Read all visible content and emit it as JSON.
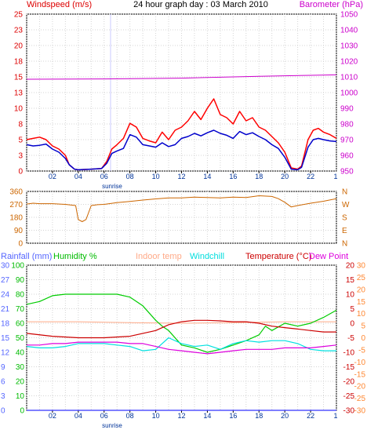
{
  "title": "24 hour graph day : 03 March 2010",
  "chart_data": [
    {
      "type": "line",
      "panel": "wind-barometer",
      "title": "24 hour graph day : 03 March 2010",
      "left_axis_label": "Windspeed (m/s)",
      "right_axis_label": "Barometer (hPa)",
      "left_ticks": [
        "0",
        "3",
        "5",
        "8",
        "10",
        "13",
        "15",
        "18",
        "20",
        "23",
        "25"
      ],
      "left_range": [
        0,
        25
      ],
      "right_ticks": [
        "950",
        "960",
        "970",
        "980",
        "990",
        "1000",
        "1010",
        "1020",
        "1030",
        "1040",
        "1050"
      ],
      "right_range": [
        950,
        1050
      ],
      "x_ticks": [
        "02",
        "04",
        "06",
        "08",
        "10",
        "12",
        "14",
        "16",
        "18",
        "20",
        "22"
      ],
      "x_range": [
        0,
        24
      ],
      "sunrise_label": "sunrise",
      "sunrise_hour": 6.5,
      "grid": true,
      "series": [
        {
          "name": "Windspeed (m/s)",
          "color": "#0000cc",
          "x": [
            0,
            0.5,
            1,
            1.5,
            2,
            2.5,
            3,
            3.3,
            3.7,
            4,
            5,
            5.8,
            6.2,
            6.6,
            7,
            7.5,
            8,
            8.5,
            9,
            9.5,
            10,
            10.5,
            11,
            11.5,
            12,
            12.5,
            13,
            13.5,
            14,
            14.5,
            15,
            15.5,
            16,
            16.5,
            17,
            17.5,
            18,
            18.5,
            19,
            19.5,
            20,
            20.5,
            21,
            21.3,
            21.8,
            22.2,
            22.6,
            23,
            23.5,
            24
          ],
          "y": [
            4.2,
            4.0,
            4.1,
            4.3,
            3.5,
            3.0,
            2.0,
            1.0,
            0.3,
            0.2,
            0.3,
            0.4,
            1.2,
            2.8,
            3.2,
            3.6,
            5.8,
            5.4,
            4.2,
            4.0,
            3.8,
            4.5,
            3.9,
            4.2,
            5.2,
            5.5,
            6.0,
            5.6,
            6.1,
            6.5,
            6.0,
            5.7,
            5.2,
            6.3,
            5.8,
            6.1,
            5.5,
            5.0,
            4.2,
            3.6,
            2.2,
            0.3,
            0.2,
            0.6,
            3.8,
            5.0,
            5.2,
            5.0,
            4.8,
            4.7
          ]
        },
        {
          "name": "Wind gust (m/s)",
          "color": "#ff0000",
          "x": [
            0,
            0.5,
            1,
            1.5,
            2,
            2.5,
            3,
            3.3,
            3.7,
            4,
            5,
            5.8,
            6.2,
            6.6,
            7,
            7.5,
            8,
            8.5,
            9,
            9.5,
            10,
            10.5,
            11,
            11.5,
            12,
            12.5,
            13,
            13.5,
            14,
            14.5,
            15,
            15.5,
            16,
            16.5,
            17,
            17.5,
            18,
            18.5,
            19,
            19.5,
            20,
            20.5,
            21,
            21.3,
            21.8,
            22.2,
            22.6,
            23,
            23.5,
            24
          ],
          "y": [
            5.0,
            5.2,
            5.4,
            5.0,
            4.0,
            3.5,
            2.5,
            1.0,
            0.3,
            0.2,
            0.3,
            0.4,
            1.5,
            3.5,
            4.2,
            5.2,
            7.6,
            7.0,
            5.2,
            4.8,
            4.5,
            6.2,
            5.0,
            6.5,
            7.0,
            8.0,
            9.5,
            8.2,
            10.0,
            11.5,
            9.0,
            8.5,
            7.5,
            9.5,
            8.0,
            8.5,
            7.0,
            6.5,
            5.5,
            4.5,
            3.0,
            0.5,
            0.3,
            0.8,
            5.0,
            6.5,
            6.8,
            6.2,
            5.8,
            5.2
          ]
        },
        {
          "name": "Barometer (hPa)",
          "color": "#cc00cc",
          "x": [
            0,
            6,
            12,
            18,
            22,
            24
          ],
          "y": [
            1008.5,
            1008.7,
            1009.2,
            1010.4,
            1011.0,
            1011.3
          ]
        }
      ]
    },
    {
      "type": "line",
      "panel": "wind-direction",
      "left_ticks": [
        "360",
        "270",
        "180",
        "90",
        "0"
      ],
      "left_range": [
        0,
        360
      ],
      "right_ticks": [
        "N",
        "W",
        "S",
        "E",
        "N"
      ],
      "x_range": [
        0,
        24
      ],
      "grid": true,
      "series": [
        {
          "name": "Wind direction",
          "color": "#cc6600",
          "x": [
            0,
            0.5,
            1,
            2,
            3,
            3.8,
            4.0,
            4.3,
            4.6,
            5,
            5.5,
            6,
            7,
            8,
            9,
            10,
            11,
            12,
            13,
            14,
            15,
            16,
            17,
            18,
            19,
            19.5,
            20,
            20.5,
            21,
            22,
            23,
            24
          ],
          "y": [
            272,
            278,
            275,
            275,
            270,
            262,
            165,
            150,
            165,
            262,
            268,
            270,
            282,
            290,
            300,
            308,
            315,
            315,
            320,
            318,
            315,
            320,
            318,
            330,
            325,
            310,
            285,
            252,
            262,
            278,
            292,
            310
          ]
        }
      ]
    },
    {
      "type": "line",
      "panel": "rain-humidity-temperature",
      "legend": [
        "Rainfall (mm)",
        "Humidity %",
        "Indoor temp",
        "Windchill",
        "Temperature (°C)",
        "Dew Point"
      ],
      "rain_ticks": [
        "0",
        "3",
        "6",
        "9",
        "12",
        "15",
        "18",
        "21",
        "24",
        "27",
        "30"
      ],
      "rain_range": [
        0,
        30
      ],
      "humidity_ticks": [
        "0",
        "10",
        "20",
        "30",
        "40",
        "50",
        "60",
        "70",
        "80",
        "90",
        "100"
      ],
      "humidity_range": [
        0,
        100
      ],
      "temp_ticks": [
        "-30",
        "-25",
        "-20",
        "-15",
        "-10",
        "-5",
        "0",
        "5",
        "10",
        "15",
        "20"
      ],
      "temp_right_ticks": [
        "-30",
        "-25",
        "-20",
        "-15",
        "-10",
        "-5",
        "0",
        "5",
        "10",
        "15",
        "20",
        "25",
        "30"
      ],
      "temp_range": [
        -30,
        20
      ],
      "x_ticks": [
        "02",
        "04",
        "06",
        "08",
        "10",
        "12",
        "14",
        "16",
        "18",
        "20",
        "22"
      ],
      "x_range": [
        0,
        24
      ],
      "sunrise_label": "sunrise",
      "grid": true,
      "series": [
        {
          "name": "Rainfall (mm)",
          "color": "#3333ff",
          "x": [
            0,
            24
          ],
          "y": [
            0,
            0
          ]
        },
        {
          "name": "Humidity %",
          "color": "#00cc00",
          "x": [
            0,
            1,
            2,
            3,
            4,
            5,
            6,
            7,
            8,
            9,
            10,
            10.5,
            11,
            12,
            13,
            14,
            15,
            16,
            17,
            18,
            18.5,
            19,
            20,
            21,
            22,
            23,
            24
          ],
          "y": [
            73,
            75,
            79,
            80,
            80,
            80,
            80,
            80,
            78,
            72,
            62,
            58,
            55,
            45,
            43,
            40,
            42,
            45,
            48,
            52,
            58,
            55,
            60,
            58,
            60,
            64,
            69
          ]
        },
        {
          "name": "Indoor temp",
          "color": "#ffaa88",
          "x": [
            0,
            4,
            8,
            12,
            16,
            20,
            24
          ],
          "y": [
            0.5,
            0.5,
            0.2,
            0.0,
            0.2,
            0.5,
            0.5
          ]
        },
        {
          "name": "Windchill",
          "color": "#00e0e0",
          "x": [
            0,
            1,
            2,
            3,
            4,
            5,
            6,
            7,
            8,
            9,
            10,
            10.5,
            11,
            12,
            13,
            14,
            15,
            16,
            17,
            18,
            19,
            20,
            21,
            22,
            23,
            24
          ],
          "y": [
            -8,
            -8.5,
            -8.5,
            -8,
            -7,
            -7,
            -7,
            -7.5,
            -8,
            -9.5,
            -9,
            -7,
            -5,
            -7,
            -8,
            -7.5,
            -9,
            -7,
            -6,
            -6.5,
            -6,
            -6,
            -7,
            -9,
            -9.5,
            -9.5
          ]
        },
        {
          "name": "Temperature (°C)",
          "color": "#cc0000",
          "x": [
            0,
            2,
            4,
            6,
            8,
            10,
            11,
            12,
            13,
            14,
            15,
            16,
            17,
            18,
            19,
            20,
            21,
            22,
            23,
            24
          ],
          "y": [
            -3.5,
            -4.5,
            -5.0,
            -5.0,
            -4.5,
            -2.5,
            -0.5,
            0.5,
            1.0,
            1.0,
            0.8,
            0.5,
            0.5,
            0.0,
            -1.0,
            -1.5,
            -2.0,
            -2.5,
            -3.0,
            -3.0
          ]
        },
        {
          "name": "Dew Point",
          "color": "#dd00dd",
          "x": [
            0,
            1,
            2,
            3,
            4,
            5,
            6,
            7,
            8,
            9,
            10,
            11,
            12,
            13,
            14,
            15,
            16,
            17,
            18,
            19,
            20,
            21,
            22,
            23,
            24
          ],
          "y": [
            -7.5,
            -7.5,
            -7,
            -7,
            -6.5,
            -6.5,
            -6.5,
            -6.5,
            -7,
            -7,
            -8,
            -9,
            -9.5,
            -10,
            -10.5,
            -10,
            -9.5,
            -9,
            -9,
            -9,
            -8.5,
            -8.5,
            -8.5,
            -8,
            -7.5
          ]
        }
      ]
    }
  ]
}
